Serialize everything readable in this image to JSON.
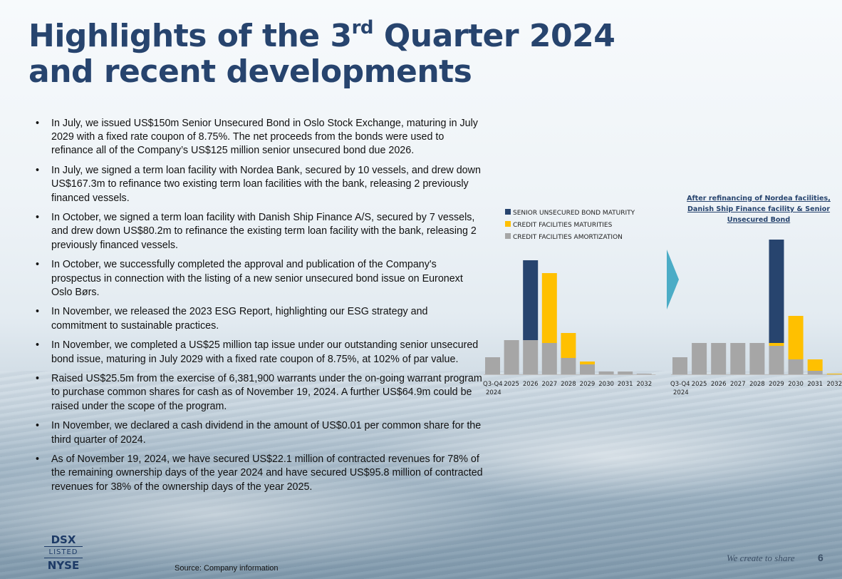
{
  "title": {
    "line1": "Highlights of the 3",
    "sup": "rd",
    "line1_end": " Quarter 2024",
    "line2": "and recent developments"
  },
  "bullets": [
    "In July, we issued US$150m Senior Unsecured Bond in Oslo Stock Exchange, maturing in July 2029 with a fixed rate coupon of 8.75%. The net proceeds from the bonds were used to refinance all of the Company’s US$125 million senior unsecured bond due 2026.",
    "In July, we signed a term loan facility with Nordea Bank, secured by 10 vessels, and drew down US$167.3m to refinance two existing term loan facilities with the bank, releasing 2 previously financed vessels.",
    "In October, we signed a term loan facility with Danish Ship Finance A/S, secured by 7 vessels, and drew down US$80.2m to refinance the existing term loan facility with the bank, releasing 2 previously financed vessels.",
    "In October, we successfully completed the approval and publication of the Company's prospectus in connection with the listing of a new senior unsecured bond issue on Euronext Oslo Børs.",
    "In November, we released the 2023 ESG Report, highlighting our ESG strategy and commitment to sustainable practices.",
    "In November, we completed a US$25 million tap issue under our outstanding senior unsecured bond issue, maturing in July 2029 with a fixed rate coupon of 8.75%, at 102% of par value.",
    "Raised US$25.5m from the exercise of 6,381,900 warrants under the on-going warrant program to purchase common shares for cash as of November 19, 2024. A further US$64.9m could be raised under the scope of the program.",
    "In November, we declared a cash dividend in the amount of US$0.01 per common share for the third quarter of 2024.",
    "As of November 19, 2024, we have secured US$22.1 million of contracted revenues for 78% of the remaining ownership days of the year 2024 and have secured US$95.8 million of contracted revenues for 38% of the ownership days of the year 2025."
  ],
  "chart_caption": "After refinancing of Nordea facilities, Danish Ship Finance facility & Senior Unsecured Bond",
  "colors": {
    "bond": "#27446e",
    "maturities": "#ffc000",
    "amortization": "#a6a6a6",
    "arrow": "#4bacc6",
    "title": "#27446e"
  },
  "chart_data": [
    {
      "type": "bar",
      "stacked": true,
      "title": "",
      "xlabel": "",
      "ylabel": "",
      "legend": [
        "SENIOR UNSECURED BOND MATURITY",
        "CREDIT FACILITIES MATURITIES",
        "CREDIT FACILITIES AMORTIZATION"
      ],
      "legend_position": "top",
      "categories": [
        "Q3-Q4 2024",
        "2025",
        "2026",
        "2027",
        "2028",
        "2029",
        "2030",
        "2031",
        "2032"
      ],
      "ylim": [
        0,
        190
      ],
      "series": [
        {
          "name": "CREDIT FACILITIES AMORTIZATION",
          "key": "amortization",
          "values": [
            24,
            48,
            48,
            44,
            23,
            14,
            4,
            4,
            1
          ]
        },
        {
          "name": "SENIOR UNSECURED BOND MATURITY",
          "key": "bond",
          "values": [
            0,
            0,
            112,
            0,
            0,
            0,
            0,
            0,
            0
          ]
        },
        {
          "name": "CREDIT FACILITIES MATURITIES",
          "key": "maturities",
          "values": [
            0,
            0,
            0,
            98,
            35,
            4,
            0,
            0,
            0
          ]
        }
      ]
    },
    {
      "type": "bar",
      "stacked": true,
      "title": "After refinancing of Nordea facilities, Danish Ship Finance facility & Senior Unsecured Bond",
      "xlabel": "",
      "ylabel": "",
      "categories": [
        "Q3-Q4 2024",
        "2025",
        "2026",
        "2027",
        "2028",
        "2029",
        "2030",
        "2031",
        "2032"
      ],
      "ylim": [
        0,
        190
      ],
      "series": [
        {
          "name": "CREDIT FACILITIES AMORTIZATION",
          "key": "amortization",
          "values": [
            24,
            44,
            44,
            44,
            44,
            40,
            21,
            5,
            0
          ]
        },
        {
          "name": "CREDIT FACILITIES MATURITIES",
          "key": "maturities",
          "values": [
            0,
            0,
            0,
            0,
            0,
            4,
            61,
            16,
            1
          ]
        },
        {
          "name": "SENIOR UNSECURED BOND MATURITY",
          "key": "bond",
          "values": [
            0,
            0,
            0,
            0,
            0,
            145,
            0,
            0,
            0
          ]
        }
      ]
    }
  ],
  "logo": {
    "top": "DSX",
    "middle": "LISTED",
    "bottom": "NYSE"
  },
  "source": "Source: Company information",
  "tagline": "We create to share",
  "page_number": "6"
}
